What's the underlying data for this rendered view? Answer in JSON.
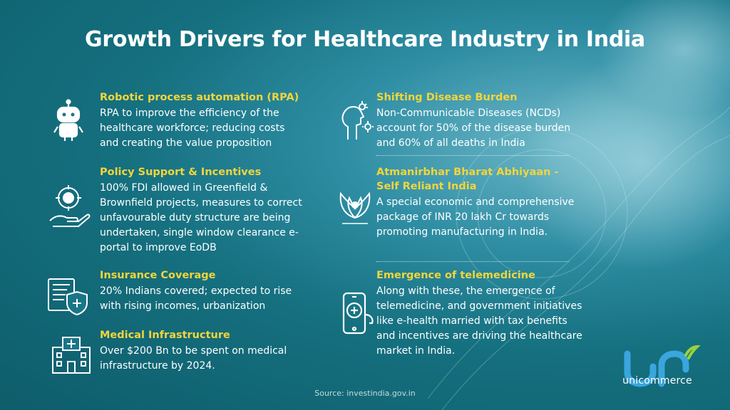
{
  "title": "Growth Drivers for Healthcare Industry in India",
  "left": [
    {
      "title": "Robotic process automation (RPA)",
      "text": "RPA to improve the efficiency of the healthcare workforce; reducing costs and creating the value proposition",
      "icon": "robot-icon"
    },
    {
      "title": "Policy Support & Incentives",
      "text": "100% FDI allowed in Greenfield & Brownfield projects, measures to correct unfavourable duty structure are being undertaken, single window clearance e-portal to improve EoDB",
      "icon": "policy-hand-icon"
    },
    {
      "title": "Insurance Coverage",
      "text": "20% Indians covered; expected to rise with rising incomes, urbanization",
      "icon": "insurance-document-icon"
    },
    {
      "title": "Medical Infrastructure",
      "text": "Over $200 Bn to be spent on medical infrastructure by 2024.",
      "icon": "hospital-icon"
    }
  ],
  "right": [
    {
      "title": "Shifting Disease Burden",
      "text": "Non-Communicable Diseases (NCDs) account for 50% of the disease burden and 60% of all deaths in India",
      "icon": "disease-icon"
    },
    {
      "title": "Atmanirbhar Bharat Abhiyaan - Self Reliant India",
      "text": "A special economic and comprehensive package of INR 20 lakh Cr towards promoting manufacturing in India.",
      "icon": "atmanirbhar-emblem-icon"
    },
    {
      "title": "Emergence of telemedicine",
      "text": "Along with these, the emergence of telemedicine, and government initiatives like e-health married with tax benefits and incentives are driving the healthcare market in India.",
      "icon": "telemedicine-phone-icon"
    }
  ],
  "source": "Source: investindia.gov.in",
  "logo": {
    "text": "unicommerce",
    "icon": "unicommerce-logo-icon"
  },
  "colors": {
    "heading": "#f2d53c",
    "text": "#ffffff",
    "background": "#15707f",
    "logo_blue": "#3aa6dd",
    "logo_green": "#9bd13b"
  }
}
